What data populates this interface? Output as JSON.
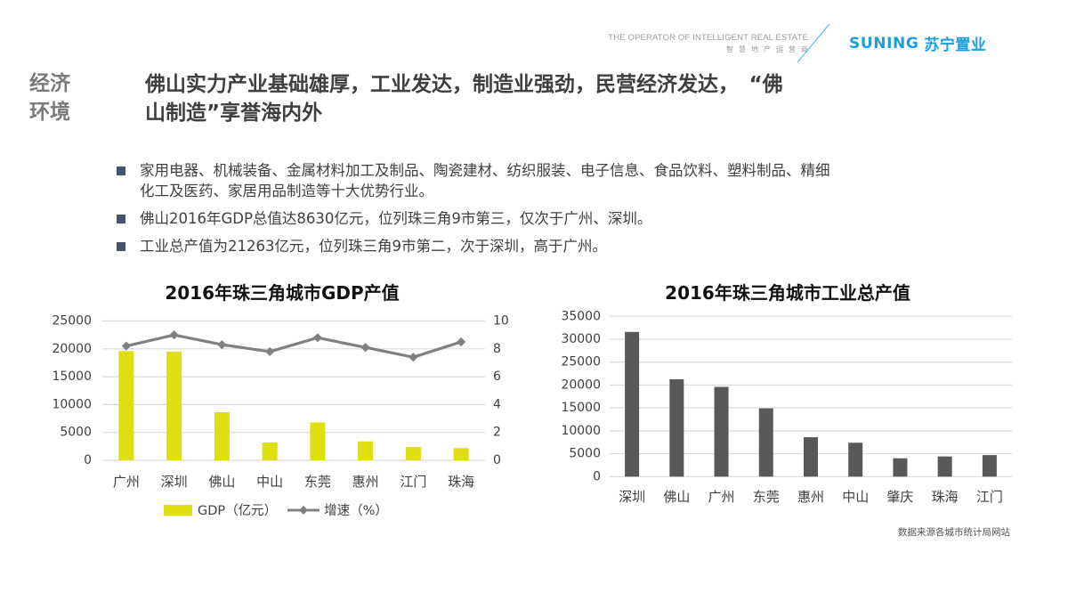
{
  "header": {
    "tagline_en": "THE OPERATOR OF INTELLIGENT REAL ESTATE",
    "tagline_cn": "智慧地产运营商",
    "brand_en": "SUNING",
    "brand_cn": "苏宁置业",
    "brand_color": "#1a9fdc",
    "slash_color": "#5bbde8"
  },
  "section": {
    "label_line1": "经济",
    "label_line2": "环境"
  },
  "headline": {
    "line1": "佛山实力产业基础雄厚，工业发达，制造业强劲，民营经济发达，　“佛",
    "line2": "山制造”享誉海内外"
  },
  "bullets": [
    {
      "line1": "家用电器、机械装备、金属材料加工及制品、陶瓷建材、纺织服装、电子信息、食品饮料、塑料制品、精细",
      "line2": "化工及医药、家居用品制造等十大优势行业。"
    },
    {
      "line1": "佛山2016年GDP总值达8630亿元，位列珠三角9市第三，仅次于广州、深圳。"
    },
    {
      "line1": "工业总产值为21263亿元，位列珠三角9市第二，次于深圳，高于广州。"
    }
  ],
  "source_note": "数据来源各城市统计局网站",
  "chart_data": [
    {
      "type": "bar+line",
      "title": "2016年珠三角城市GDP产值",
      "categories": [
        "广州",
        "深圳",
        "佛山",
        "中山",
        "东莞",
        "惠州",
        "江门",
        "珠海"
      ],
      "series": [
        {
          "name": "GDP（亿元）",
          "type": "bar",
          "axis": "left",
          "color": "#dede10",
          "values": [
            19600,
            19500,
            8630,
            3200,
            6800,
            3400,
            2400,
            2200
          ]
        },
        {
          "name": "增速（%）",
          "type": "line",
          "axis": "right",
          "color": "#808080",
          "values": [
            8.2,
            9.0,
            8.3,
            7.8,
            8.8,
            8.1,
            7.4,
            8.5
          ]
        }
      ],
      "y_left": {
        "min": 0,
        "max": 25000,
        "ticks": [
          0,
          5000,
          10000,
          15000,
          20000,
          25000
        ]
      },
      "y_right": {
        "min": 0,
        "max": 10,
        "ticks": [
          0,
          2,
          4,
          6,
          8,
          10
        ]
      },
      "xlabel": "",
      "ylabel": "",
      "grid": true,
      "legend_position": "bottom"
    },
    {
      "type": "bar",
      "title": "2016年珠三角城市工业总产值",
      "categories": [
        "深圳",
        "佛山",
        "广州",
        "东莞",
        "惠州",
        "中山",
        "肇庆",
        "珠海",
        "江门"
      ],
      "values": [
        31600,
        21263,
        19600,
        14900,
        8600,
        7400,
        4000,
        4400,
        4700
      ],
      "color": "#595959",
      "ylim": [
        0,
        35000
      ],
      "ticks": [
        0,
        5000,
        10000,
        15000,
        20000,
        25000,
        30000,
        35000
      ],
      "xlabel": "",
      "ylabel": "",
      "grid": true,
      "legend_position": "none"
    }
  ]
}
